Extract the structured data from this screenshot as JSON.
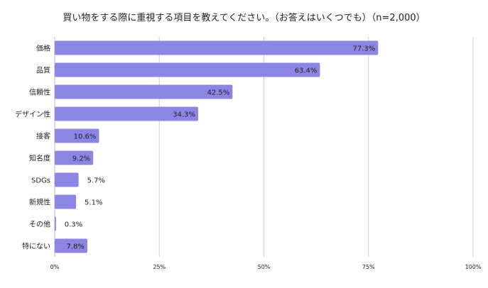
{
  "chart_data": {
    "type": "bar",
    "orientation": "horizontal",
    "title": "買い物をする際に重視する項目を教えてください。（お答えはいくつでも）（n=2,000）",
    "categories": [
      "価格",
      "品質",
      "信頼性",
      "デザイン性",
      "接客",
      "知名度",
      "SDGs",
      "新規性",
      "その他",
      "特にない"
    ],
    "values": [
      77.3,
      63.4,
      42.5,
      34.3,
      10.6,
      9.2,
      5.7,
      5.1,
      0.3,
      7.8
    ],
    "data_labels": [
      "77.3%",
      "63.4%",
      "42.5%",
      "34.3%",
      "10.6%",
      "9.2%",
      "5.7%",
      "5.1%",
      "0.3%",
      "7.8%"
    ],
    "xlim": [
      0,
      100
    ],
    "xticks": [
      0,
      25,
      50,
      75,
      100
    ],
    "xtick_labels": [
      "0%",
      "25%",
      "50%",
      "75%",
      "100%"
    ],
    "grid": true,
    "legend": "none",
    "colors": {
      "bar": "#8b86e4",
      "grid": "#cfcfcf",
      "text": "#222222"
    }
  }
}
